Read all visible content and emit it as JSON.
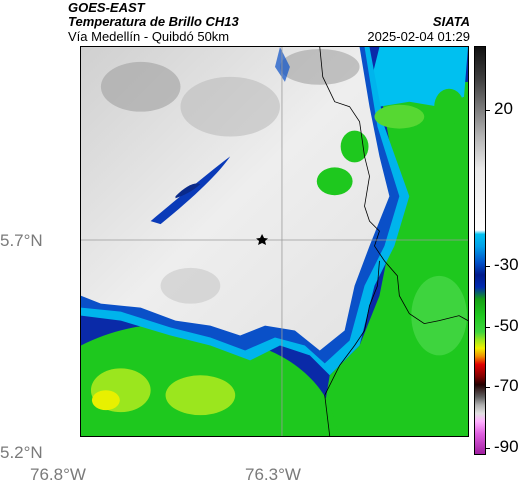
{
  "header": {
    "source": "GOES-EAST",
    "product": "Temperatura de Brillo CH13",
    "region": "Vía Medellín - Quibdó 50km",
    "org": "SIATA",
    "datetime": "2025-02-04 01:29"
  },
  "axes": {
    "lat_ticks": [
      "5.7°N",
      "5.2°N"
    ],
    "lon_ticks": [
      "76.8°W",
      "76.3°W"
    ]
  },
  "colorbar": {
    "ticks": [
      "20",
      "-30",
      "-50",
      "-70",
      "-90"
    ]
  },
  "marker": {
    "icon": "star-icon"
  },
  "colors": {
    "cold_cloud": "#e6e6e6",
    "cyan": "#00b0f0",
    "deep_blue": "#001a8c",
    "green": "#14c814",
    "yellow": "#f0f000",
    "border": "#000000"
  }
}
